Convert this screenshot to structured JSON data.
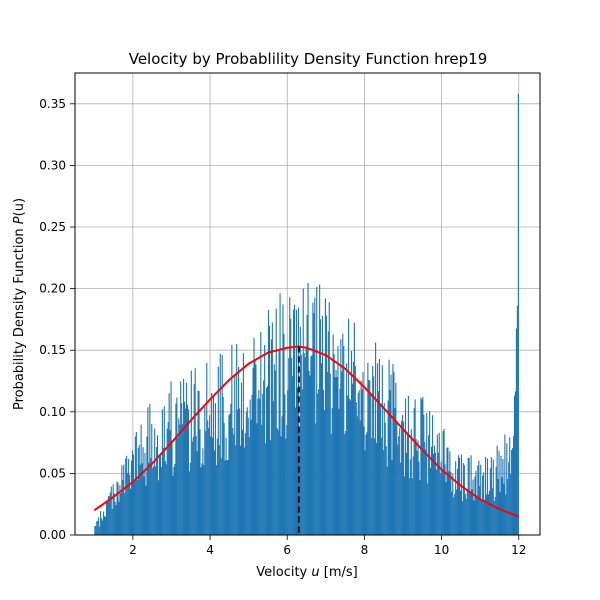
{
  "chart_data": {
    "type": "bar",
    "title": "Velocity by Probablility Density Function hrep19",
    "xlabel": {
      "prefix": "Velocity ",
      "symbol": "u",
      "suffix": " [m/s]"
    },
    "ylabel": {
      "prefix": "Probability Density Function ",
      "symbol": "P",
      "suffix": "(u)"
    },
    "xlim": [
      0.5,
      12.55
    ],
    "ylim": [
      0,
      0.375
    ],
    "xticks": [
      2,
      4,
      6,
      8,
      10,
      12
    ],
    "xtick_labels": [
      "2",
      "4",
      "6",
      "8",
      "10",
      "12"
    ],
    "yticks": [
      0,
      0.05,
      0.1,
      0.15,
      0.2,
      0.25,
      0.3,
      0.35
    ],
    "ytick_labels": [
      "0.00",
      "0.05",
      "0.10",
      "0.15",
      "0.20",
      "0.25",
      "0.30",
      "0.35"
    ],
    "grid": true,
    "histogram": {
      "bin_start": 1.0,
      "bin_end": 12.0,
      "bin_count": 440,
      "color": "#1f77b4",
      "envelope_x": [
        1.0,
        1.2,
        1.5,
        1.8,
        2.0,
        2.5,
        3.0,
        3.5,
        4.0,
        4.5,
        5.0,
        5.5,
        6.0,
        6.3,
        6.5,
        7.0,
        7.5,
        8.0,
        8.5,
        9.0,
        9.5,
        10.0,
        10.5,
        11.0,
        11.5,
        11.8,
        11.9,
        11.95,
        12.0
      ],
      "envelope_y": [
        0.005,
        0.015,
        0.035,
        0.045,
        0.055,
        0.075,
        0.085,
        0.09,
        0.095,
        0.105,
        0.115,
        0.125,
        0.135,
        0.135,
        0.14,
        0.135,
        0.125,
        0.115,
        0.1,
        0.085,
        0.075,
        0.06,
        0.05,
        0.045,
        0.05,
        0.06,
        0.09,
        0.15,
        0.36
      ]
    },
    "pdf_curve": {
      "color": "#ff0000",
      "x": [
        1.0,
        1.5,
        2.0,
        2.5,
        3.0,
        3.5,
        4.0,
        4.5,
        5.0,
        5.5,
        6.0,
        6.3,
        6.5,
        7.0,
        7.5,
        8.0,
        8.5,
        9.0,
        9.5,
        10.0,
        10.5,
        11.0,
        11.5,
        12.0
      ],
      "y": [
        0.02,
        0.031,
        0.043,
        0.058,
        0.075,
        0.093,
        0.11,
        0.126,
        0.139,
        0.148,
        0.152,
        0.153,
        0.152,
        0.146,
        0.135,
        0.12,
        0.103,
        0.086,
        0.069,
        0.053,
        0.04,
        0.029,
        0.021,
        0.015
      ]
    },
    "mean_line": {
      "x": 6.3,
      "y": 0.153,
      "color": "#000000",
      "style": "dashed"
    }
  }
}
